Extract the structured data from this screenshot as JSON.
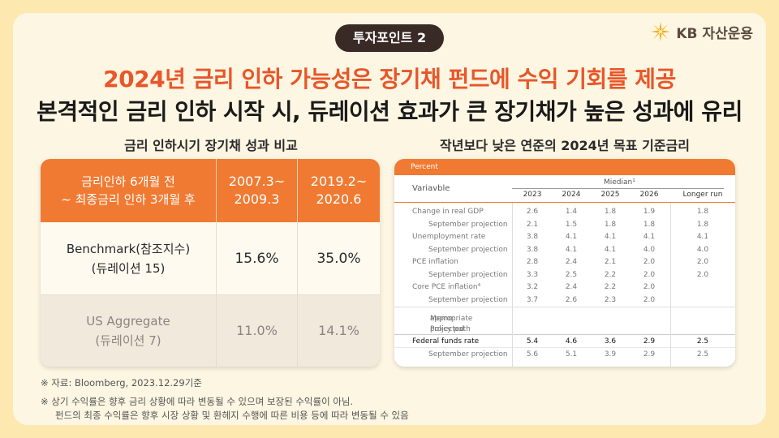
{
  "badge": "투자포인트 2",
  "logo": {
    "mark": "KB",
    "text": "자산운용",
    "icon": "kb-star-icon",
    "color": "#f5b21c"
  },
  "title_line1": "2024년 금리 인하 가능성은 장기채 펀드에 수익 기회를 제공",
  "title_line2": "본격적인 금리 인하 시작 시, 듀레이션 효과가 큰 장기채가 높은 성과에 유리",
  "left": {
    "subtitle": "금리 인하시기 장기채 성과 비교",
    "header": {
      "col1_line1": "금리인하 6개월 전",
      "col1_line2": "~ 최종금리 인하 3개월 후",
      "col2_line1": "2007.3~",
      "col2_line2": "2009.3",
      "col3_line1": "2019.2~",
      "col3_line2": "2020.6"
    },
    "rows": [
      {
        "name_line1": "Benchmark(참조지수)",
        "name_line2": "(듀레이션 15)",
        "v1": "15.6%",
        "v2": "35.0%"
      },
      {
        "name_line1": "US Aggregate",
        "name_line2": "(듀레이션 7)",
        "v1": "11.0%",
        "v2": "14.1%"
      }
    ]
  },
  "right": {
    "subtitle": "작년보다 낮은 연준의 2024년 목표 기준금리",
    "percent": "Percent",
    "variable": "Variavble",
    "median": "Miedian¹",
    "years": [
      "2023",
      "2024",
      "2025",
      "2026",
      "Longer run"
    ],
    "rows": [
      {
        "label": "Change in real GDP",
        "indent": false,
        "values": [
          "2.6",
          "1.4",
          "1.8",
          "1.9",
          "1.8"
        ]
      },
      {
        "label": "September projection",
        "indent": true,
        "values": [
          "2.1",
          "1.5",
          "1.8",
          "1.8",
          "1.8"
        ]
      },
      {
        "label": "Unemployment rate",
        "indent": false,
        "values": [
          "3.8",
          "4.1",
          "4.1",
          "4.1",
          "4.1"
        ]
      },
      {
        "label": "September projection",
        "indent": true,
        "values": [
          "3.8",
          "4.1",
          "4.1",
          "4.0",
          "4.0"
        ]
      },
      {
        "label": "PCE inflation",
        "indent": false,
        "values": [
          "2.8",
          "2.4",
          "2.1",
          "2.0",
          "2.0"
        ]
      },
      {
        "label": "September projection",
        "indent": true,
        "values": [
          "3.3",
          "2.5",
          "2.2",
          "2.0",
          "2.0"
        ]
      },
      {
        "label": "Core PCE inflation⁴",
        "indent": false,
        "values": [
          "3.2",
          "2.4",
          "2.2",
          "2.0",
          ""
        ]
      },
      {
        "label": "September projection",
        "indent": true,
        "values": [
          "3.7",
          "2.6",
          "2.3",
          "2.0",
          ""
        ]
      }
    ],
    "memo_line1": "Memo: Projected",
    "memo_line2": "appropriate policy path",
    "fed_rows": [
      {
        "label": "Federal funds rate",
        "indent": false,
        "values": [
          "5.4",
          "4.6",
          "3.6",
          "2.9",
          "2.5"
        ]
      },
      {
        "label": "September projection",
        "indent": true,
        "values": [
          "5.6",
          "5.1",
          "3.9",
          "2.9",
          "2.5"
        ]
      }
    ]
  },
  "notes": {
    "source": "※ 자료: Bloomberg, 2023.12.29기준",
    "disclaimer1": "※ 상기 수익률은 향후 금리 상황에 따라 변동될 수 있으며 보장된 수익률이 아님.",
    "disclaimer2": "펀드의 최종 수익률은  향후 시장 상황 및 환헤지 수행에 따른 비용 등에 따라 변동될 수 있음"
  }
}
